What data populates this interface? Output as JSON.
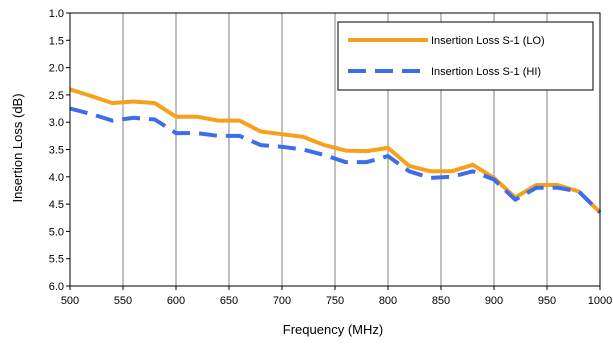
{
  "chart_data": {
    "type": "line",
    "title": "",
    "xlabel": "Frequency (MHz)",
    "ylabel": "Insertion Loss (dB)",
    "xlim": [
      500,
      1000
    ],
    "ylim": [
      1.0,
      6.0
    ],
    "y_inverted": true,
    "x_ticks": [
      "500",
      "550",
      "600",
      "650",
      "700",
      "750",
      "800",
      "850",
      "900",
      "950",
      "1000"
    ],
    "y_ticks": [
      "1.0",
      "1.5",
      "2.0",
      "2.5",
      "3.0",
      "3.5",
      "4.0",
      "4.5",
      "5.0",
      "5.5",
      "6.0"
    ],
    "grid": "vertical",
    "legend_position": "top-right",
    "series": [
      {
        "name": "Insertion Loss S-1 (LO)",
        "color": "#f7a01d",
        "dash": "solid",
        "x": [
          500,
          520,
          540,
          560,
          580,
          600,
          620,
          640,
          660,
          680,
          700,
          720,
          740,
          760,
          780,
          800,
          820,
          840,
          860,
          880,
          900,
          920,
          940,
          960,
          980,
          1000
        ],
        "y": [
          2.4,
          2.52,
          2.65,
          2.62,
          2.65,
          2.9,
          2.9,
          2.97,
          2.97,
          3.17,
          3.22,
          3.27,
          3.42,
          3.52,
          3.53,
          3.47,
          3.8,
          3.9,
          3.9,
          3.78,
          4.02,
          4.38,
          4.15,
          4.15,
          4.27,
          4.65
        ]
      },
      {
        "name": "Insertion Loss S-1 (HI)",
        "color": "#3b6ee8",
        "dash": "dashed",
        "x": [
          500,
          520,
          540,
          560,
          580,
          600,
          620,
          640,
          660,
          680,
          700,
          720,
          740,
          760,
          780,
          800,
          820,
          840,
          860,
          880,
          900,
          920,
          940,
          960,
          980,
          1000
        ],
        "y": [
          2.75,
          2.85,
          2.97,
          2.92,
          2.95,
          3.2,
          3.2,
          3.25,
          3.25,
          3.42,
          3.45,
          3.5,
          3.6,
          3.73,
          3.73,
          3.62,
          3.9,
          4.02,
          4.0,
          3.9,
          4.05,
          4.42,
          4.2,
          4.2,
          4.27,
          4.65
        ]
      }
    ]
  }
}
